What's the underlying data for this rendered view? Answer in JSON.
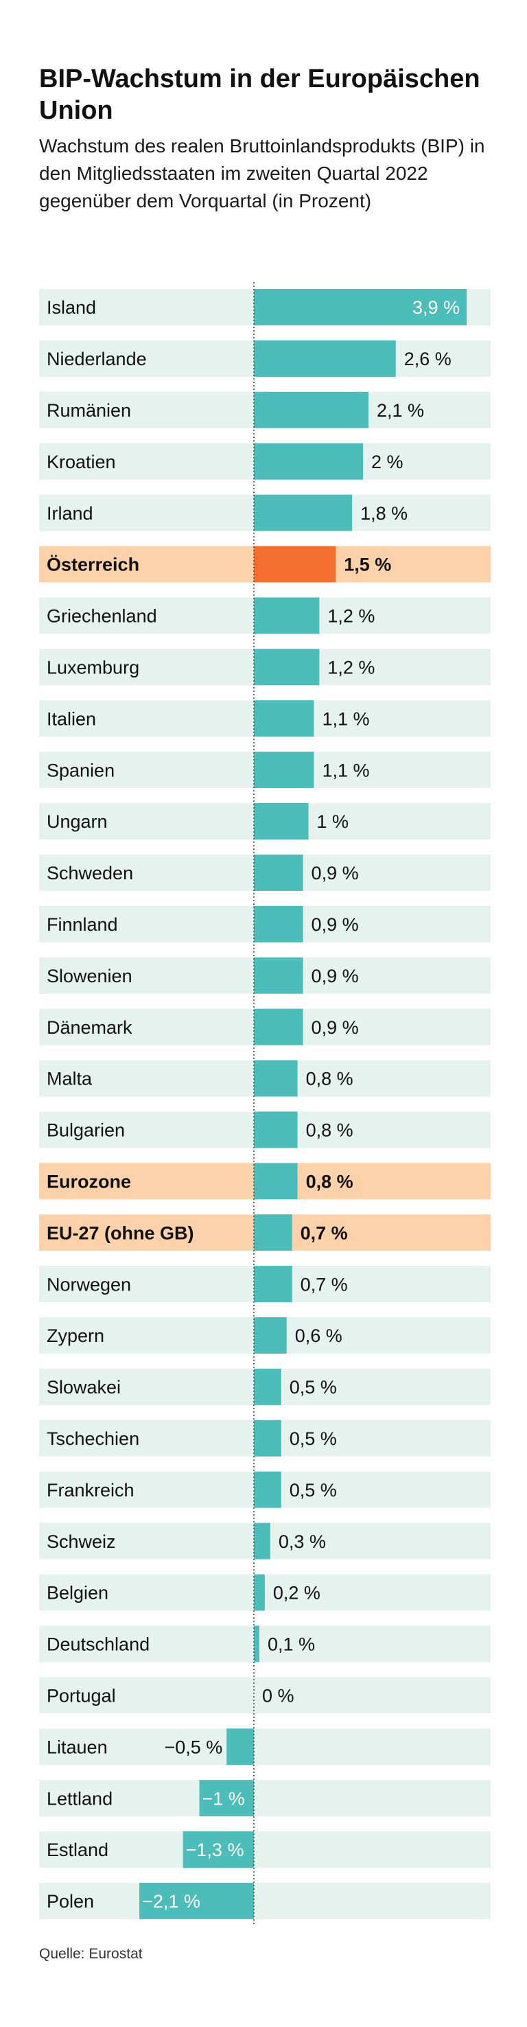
{
  "title": "BIP-Wachstum in der Europäischen Union",
  "subtitle": "Wachstum des realen Bruttoinlands­produkts (BIP) in den Mitgliedsstaaten im zweiten Quartal 2022 gegenüber dem Vorquartal (in Prozent)",
  "source": "Quelle: Eurostat",
  "colors": {
    "bar": "#4dbdba",
    "highlight_bar": "#f46f2d",
    "row_bg": "#e6f2ed",
    "highlight_row_bg": "#fdd2ab",
    "zero_line": "#444444"
  },
  "chart_data": {
    "type": "bar",
    "orientation": "horizontal",
    "categories": [
      "Island",
      "Niederlande",
      "Rumänien",
      "Kroatien",
      "Irland",
      "Österreich",
      "Griechenland",
      "Luxemburg",
      "Italien",
      "Spanien",
      "Ungarn",
      "Schweden",
      "Finnland",
      "Slowenien",
      "Dänemark",
      "Malta",
      "Bulgarien",
      "Eurozone",
      "EU-27 (ohne GB)",
      "Norwegen",
      "Zypern",
      "Slowakei",
      "Tschechien",
      "Frankreich",
      "Schweiz",
      "Belgien",
      "Deutschland",
      "Portugal",
      "Litauen",
      "Lettland",
      "Estland",
      "Polen"
    ],
    "values": [
      3.9,
      2.6,
      2.1,
      2,
      1.8,
      1.5,
      1.2,
      1.2,
      1.1,
      1.1,
      1,
      0.9,
      0.9,
      0.9,
      0.9,
      0.8,
      0.8,
      0.8,
      0.7,
      0.7,
      0.6,
      0.5,
      0.5,
      0.5,
      0.3,
      0.2,
      0.1,
      0,
      -0.5,
      -1,
      -1.3,
      -2.1
    ],
    "value_labels": [
      "3,9 %",
      "2,6 %",
      "2,1 %",
      "2 %",
      "1,8 %",
      "1,5 %",
      "1,2 %",
      "1,2 %",
      "1,1 %",
      "1,1 %",
      "1 %",
      "0,9 %",
      "0,9 %",
      "0,9 %",
      "0,9 %",
      "0,8 %",
      "0,8 %",
      "0,8 %",
      "0,7 %",
      "0,7 %",
      "0,6 %",
      "0,5 %",
      "0,5 %",
      "0,5 %",
      "0,3 %",
      "0,2 %",
      "0,1 %",
      "0 %",
      "−0,5 %",
      "−1 %",
      "−1,3 %",
      "−2,1 %"
    ],
    "highlighted": [
      "Österreich",
      "Eurozone",
      "EU-27 (ohne GB)"
    ],
    "highlight_bar": [
      "Österreich"
    ],
    "xlim": [
      -2.1,
      4.1
    ],
    "zero_line": "dotted"
  }
}
